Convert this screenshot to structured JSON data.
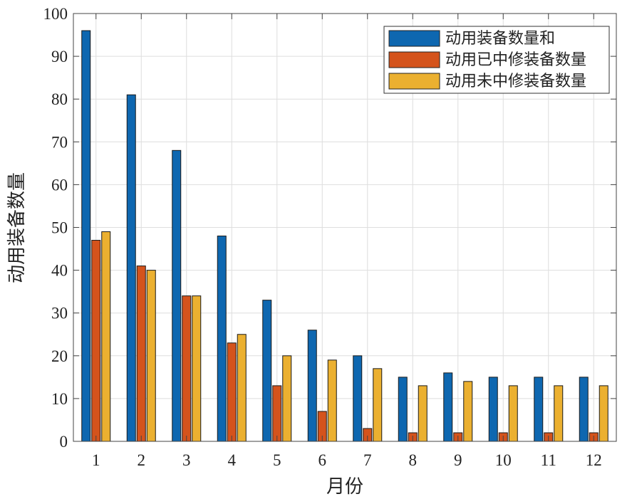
{
  "chart_data": {
    "type": "bar",
    "categories": [
      "1",
      "2",
      "3",
      "4",
      "5",
      "6",
      "7",
      "8",
      "9",
      "10",
      "11",
      "12"
    ],
    "series": [
      {
        "name": "动用装备数量和",
        "values": [
          96,
          81,
          68,
          48,
          33,
          26,
          20,
          15,
          16,
          15,
          15,
          15
        ],
        "color": "#0e67b0"
      },
      {
        "name": "动用已中修装备数量",
        "values": [
          47,
          41,
          34,
          23,
          13,
          7,
          3,
          2,
          2,
          2,
          2,
          2
        ],
        "color": "#d4531c"
      },
      {
        "name": "动用未中修装备数量",
        "values": [
          49,
          40,
          34,
          25,
          20,
          19,
          17,
          13,
          14,
          13,
          13,
          13
        ],
        "color": "#ebb030"
      }
    ],
    "xlabel": "月份",
    "ylabel": "动用装备数量",
    "ylim": [
      0,
      100
    ],
    "yticks": [
      0,
      10,
      20,
      30,
      40,
      50,
      60,
      70,
      80,
      90,
      100
    ],
    "grid": true,
    "legend_position": "top-right"
  }
}
